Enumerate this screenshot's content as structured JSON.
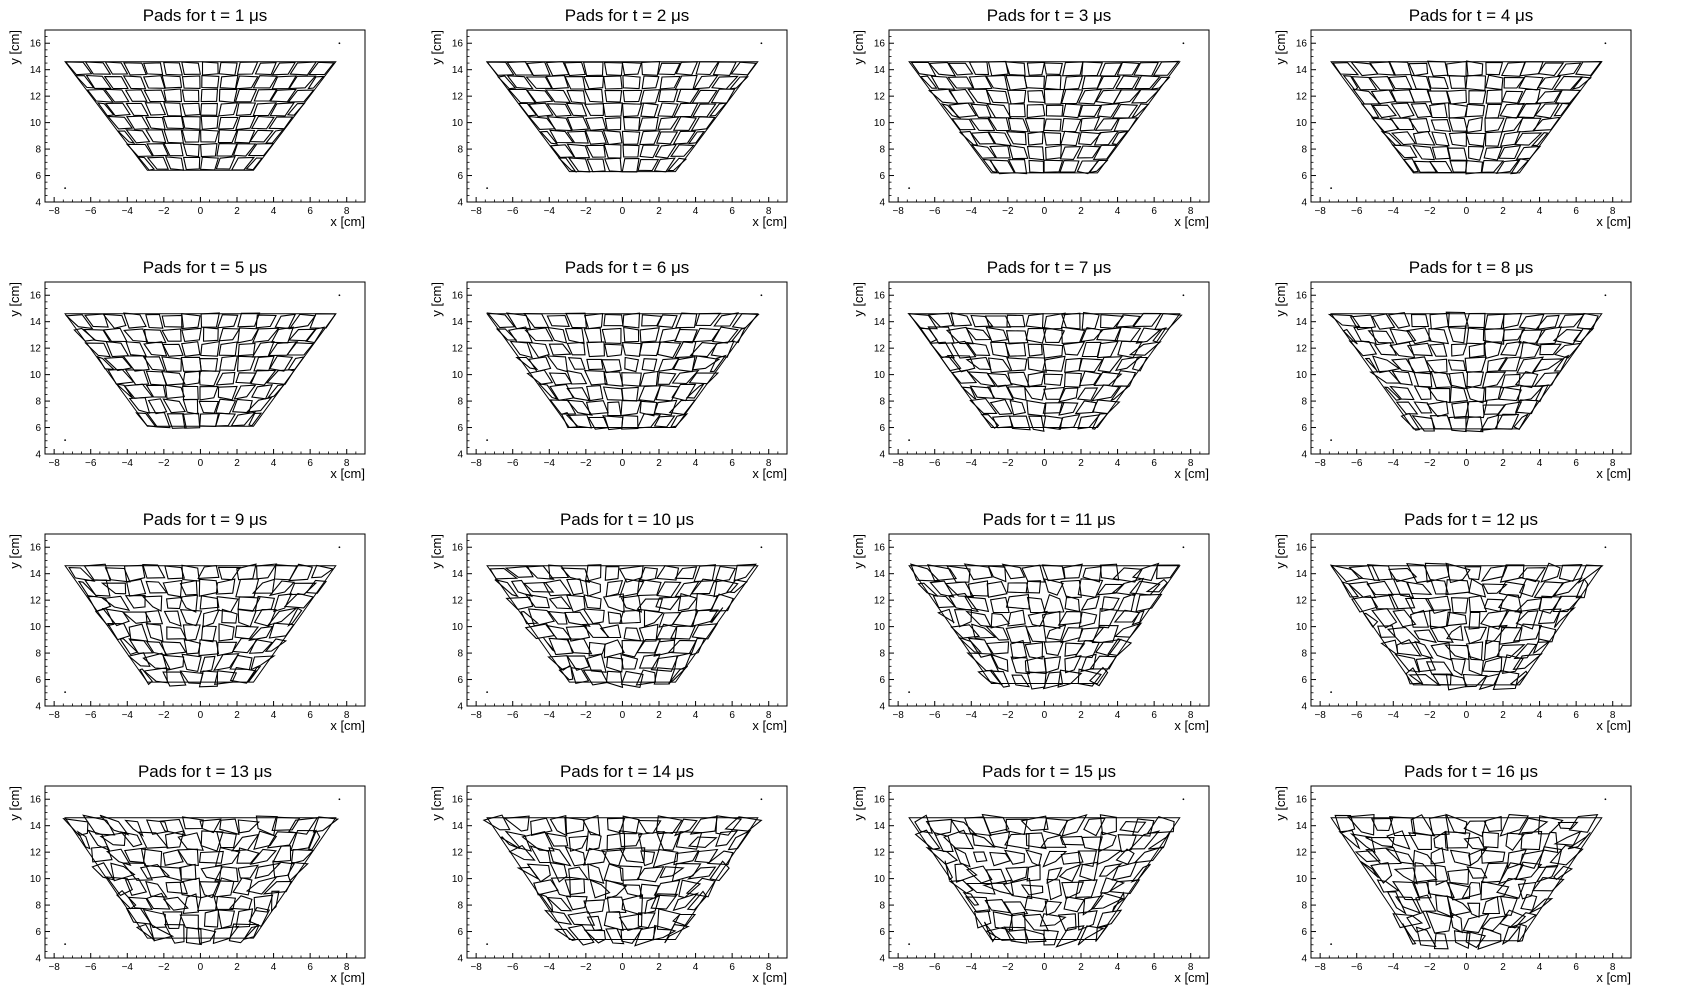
{
  "figure": {
    "background": "#ffffff",
    "line_color": "#000000"
  },
  "chart_data": [
    {
      "type": "scatter",
      "title": "Pads for t = 1 μs",
      "time_us": 1,
      "xlabel": "x [cm]",
      "ylabel": "y [cm]",
      "xlim": [
        -8.5,
        9
      ],
      "ylim": [
        4,
        17
      ],
      "xticks": [
        -8,
        -6,
        -4,
        -2,
        0,
        2,
        4,
        6,
        8
      ],
      "yticks": [
        4,
        6,
        8,
        10,
        12,
        14,
        16
      ],
      "trapezoid": {
        "top_y": 14.6,
        "bottom_y": 6.4,
        "top_x": [
          -7.4,
          7.4
        ],
        "bottom_x": [
          -2.9,
          2.9
        ]
      },
      "pad_rows": 8,
      "pads_per_row": 15,
      "grid": false,
      "legend": "none",
      "edge_points": [
        [
          -7.4,
          5.05
        ],
        [
          7.6,
          16.0
        ]
      ]
    },
    {
      "type": "scatter",
      "title": "Pads for t = 2 μs",
      "time_us": 2,
      "xlabel": "x [cm]",
      "ylabel": "y [cm]",
      "xlim": [
        -8.5,
        9
      ],
      "ylim": [
        4,
        17
      ],
      "xticks": [
        -8,
        -6,
        -4,
        -2,
        0,
        2,
        4,
        6,
        8
      ],
      "yticks": [
        4,
        6,
        8,
        10,
        12,
        14,
        16
      ],
      "trapezoid": {
        "top_y": 14.6,
        "bottom_y": 6.3,
        "top_x": [
          -7.4,
          7.4
        ],
        "bottom_x": [
          -2.9,
          2.9
        ]
      },
      "pad_rows": 8,
      "pads_per_row": 15,
      "grid": false,
      "legend": "none",
      "edge_points": [
        [
          -7.4,
          5.05
        ],
        [
          7.6,
          16.0
        ]
      ]
    },
    {
      "type": "scatter",
      "title": "Pads for t = 3 μs",
      "time_us": 3,
      "xlabel": "x [cm]",
      "ylabel": "y [cm]",
      "xlim": [
        -8.5,
        9
      ],
      "ylim": [
        4,
        17
      ],
      "xticks": [
        -8,
        -6,
        -4,
        -2,
        0,
        2,
        4,
        6,
        8
      ],
      "yticks": [
        4,
        6,
        8,
        10,
        12,
        14,
        16
      ],
      "trapezoid": {
        "top_y": 14.6,
        "bottom_y": 6.2,
        "top_x": [
          -7.4,
          7.4
        ],
        "bottom_x": [
          -2.9,
          2.9
        ]
      },
      "pad_rows": 8,
      "pads_per_row": 15,
      "grid": false,
      "legend": "none",
      "edge_points": [
        [
          -7.4,
          5.05
        ],
        [
          7.6,
          16.0
        ]
      ]
    },
    {
      "type": "scatter",
      "title": "Pads for t = 4 μs",
      "time_us": 4,
      "xlabel": "x [cm]",
      "ylabel": "y [cm]",
      "xlim": [
        -8.5,
        9
      ],
      "ylim": [
        4,
        17
      ],
      "xticks": [
        -8,
        -6,
        -4,
        -2,
        0,
        2,
        4,
        6,
        8
      ],
      "yticks": [
        4,
        6,
        8,
        10,
        12,
        14,
        16
      ],
      "trapezoid": {
        "top_y": 14.6,
        "bottom_y": 6.2,
        "top_x": [
          -7.4,
          7.4
        ],
        "bottom_x": [
          -2.9,
          2.9
        ]
      },
      "pad_rows": 8,
      "pads_per_row": 15,
      "grid": false,
      "legend": "none",
      "edge_points": [
        [
          -7.4,
          5.05
        ],
        [
          7.6,
          16.0
        ]
      ]
    },
    {
      "type": "scatter",
      "title": "Pads for t = 5 μs",
      "time_us": 5,
      "xlabel": "x [cm]",
      "ylabel": "y [cm]",
      "xlim": [
        -8.5,
        9
      ],
      "ylim": [
        4,
        17
      ],
      "xticks": [
        -8,
        -6,
        -4,
        -2,
        0,
        2,
        4,
        6,
        8
      ],
      "yticks": [
        4,
        6,
        8,
        10,
        12,
        14,
        16
      ],
      "trapezoid": {
        "top_y": 14.6,
        "bottom_y": 6.1,
        "top_x": [
          -7.4,
          7.4
        ],
        "bottom_x": [
          -2.9,
          2.9
        ]
      },
      "pad_rows": 8,
      "pads_per_row": 15,
      "grid": false,
      "legend": "none",
      "edge_points": [
        [
          -7.4,
          5.05
        ],
        [
          7.6,
          16.0
        ]
      ]
    },
    {
      "type": "scatter",
      "title": "Pads for t = 6 μs",
      "time_us": 6,
      "xlabel": "x [cm]",
      "ylabel": "y [cm]",
      "xlim": [
        -8.5,
        9
      ],
      "ylim": [
        4,
        17
      ],
      "xticks": [
        -8,
        -6,
        -4,
        -2,
        0,
        2,
        4,
        6,
        8
      ],
      "yticks": [
        4,
        6,
        8,
        10,
        12,
        14,
        16
      ],
      "trapezoid": {
        "top_y": 14.6,
        "bottom_y": 6.0,
        "top_x": [
          -7.4,
          7.4
        ],
        "bottom_x": [
          -2.9,
          2.9
        ]
      },
      "pad_rows": 8,
      "pads_per_row": 15,
      "grid": false,
      "legend": "none",
      "edge_points": [
        [
          -7.4,
          5.05
        ],
        [
          7.6,
          16.0
        ]
      ]
    },
    {
      "type": "scatter",
      "title": "Pads for t = 7 μs",
      "time_us": 7,
      "xlabel": "x [cm]",
      "ylabel": "y [cm]",
      "xlim": [
        -8.5,
        9
      ],
      "ylim": [
        4,
        17
      ],
      "xticks": [
        -8,
        -6,
        -4,
        -2,
        0,
        2,
        4,
        6,
        8
      ],
      "yticks": [
        4,
        6,
        8,
        10,
        12,
        14,
        16
      ],
      "trapezoid": {
        "top_y": 14.6,
        "bottom_y": 6.0,
        "top_x": [
          -7.4,
          7.4
        ],
        "bottom_x": [
          -2.9,
          2.9
        ]
      },
      "pad_rows": 8,
      "pads_per_row": 15,
      "grid": false,
      "legend": "none",
      "edge_points": [
        [
          -7.4,
          5.05
        ],
        [
          7.6,
          16.0
        ]
      ]
    },
    {
      "type": "scatter",
      "title": "Pads for t = 8 μs",
      "time_us": 8,
      "xlabel": "x [cm]",
      "ylabel": "y [cm]",
      "xlim": [
        -8.5,
        9
      ],
      "ylim": [
        4,
        17
      ],
      "xticks": [
        -8,
        -6,
        -4,
        -2,
        0,
        2,
        4,
        6,
        8
      ],
      "yticks": [
        4,
        6,
        8,
        10,
        12,
        14,
        16
      ],
      "trapezoid": {
        "top_y": 14.6,
        "bottom_y": 5.9,
        "top_x": [
          -7.4,
          7.4
        ],
        "bottom_x": [
          -2.9,
          2.9
        ]
      },
      "pad_rows": 8,
      "pads_per_row": 15,
      "grid": false,
      "legend": "none",
      "edge_points": [
        [
          -7.4,
          5.05
        ],
        [
          7.6,
          16.0
        ]
      ]
    },
    {
      "type": "scatter",
      "title": "Pads for t = 9 μs",
      "time_us": 9,
      "xlabel": "x [cm]",
      "ylabel": "y [cm]",
      "xlim": [
        -8.5,
        9
      ],
      "ylim": [
        4,
        17
      ],
      "xticks": [
        -8,
        -6,
        -4,
        -2,
        0,
        2,
        4,
        6,
        8
      ],
      "yticks": [
        4,
        6,
        8,
        10,
        12,
        14,
        16
      ],
      "trapezoid": {
        "top_y": 14.6,
        "bottom_y": 5.8,
        "top_x": [
          -7.4,
          7.4
        ],
        "bottom_x": [
          -2.9,
          2.9
        ]
      },
      "pad_rows": 8,
      "pads_per_row": 15,
      "grid": false,
      "legend": "none",
      "edge_points": [
        [
          -7.4,
          5.05
        ],
        [
          7.6,
          16.0
        ]
      ]
    },
    {
      "type": "scatter",
      "title": "Pads for t = 10 μs",
      "time_us": 10,
      "xlabel": "x [cm]",
      "ylabel": "y [cm]",
      "xlim": [
        -8.5,
        9
      ],
      "ylim": [
        4,
        17
      ],
      "xticks": [
        -8,
        -6,
        -4,
        -2,
        0,
        2,
        4,
        6,
        8
      ],
      "yticks": [
        4,
        6,
        8,
        10,
        12,
        14,
        16
      ],
      "trapezoid": {
        "top_y": 14.6,
        "bottom_y": 5.8,
        "top_x": [
          -7.4,
          7.4
        ],
        "bottom_x": [
          -2.9,
          2.9
        ]
      },
      "pad_rows": 8,
      "pads_per_row": 15,
      "grid": false,
      "legend": "none",
      "edge_points": [
        [
          -7.4,
          5.05
        ],
        [
          7.6,
          16.0
        ]
      ]
    },
    {
      "type": "scatter",
      "title": "Pads for t = 11 μs",
      "time_us": 11,
      "xlabel": "x [cm]",
      "ylabel": "y [cm]",
      "xlim": [
        -8.5,
        9
      ],
      "ylim": [
        4,
        17
      ],
      "xticks": [
        -8,
        -6,
        -4,
        -2,
        0,
        2,
        4,
        6,
        8
      ],
      "yticks": [
        4,
        6,
        8,
        10,
        12,
        14,
        16
      ],
      "trapezoid": {
        "top_y": 14.6,
        "bottom_y": 5.7,
        "top_x": [
          -7.4,
          7.4
        ],
        "bottom_x": [
          -2.9,
          2.9
        ]
      },
      "pad_rows": 8,
      "pads_per_row": 15,
      "grid": false,
      "legend": "none",
      "edge_points": [
        [
          -7.4,
          5.05
        ],
        [
          7.6,
          16.0
        ]
      ]
    },
    {
      "type": "scatter",
      "title": "Pads for t = 12 μs",
      "time_us": 12,
      "xlabel": "x [cm]",
      "ylabel": "y [cm]",
      "xlim": [
        -8.5,
        9
      ],
      "ylim": [
        4,
        17
      ],
      "xticks": [
        -8,
        -6,
        -4,
        -2,
        0,
        2,
        4,
        6,
        8
      ],
      "yticks": [
        4,
        6,
        8,
        10,
        12,
        14,
        16
      ],
      "trapezoid": {
        "top_y": 14.6,
        "bottom_y": 5.6,
        "top_x": [
          -7.4,
          7.4
        ],
        "bottom_x": [
          -2.9,
          2.9
        ]
      },
      "pad_rows": 8,
      "pads_per_row": 15,
      "grid": false,
      "legend": "none",
      "edge_points": [
        [
          -7.4,
          5.05
        ],
        [
          7.6,
          16.0
        ]
      ]
    },
    {
      "type": "scatter",
      "title": "Pads for t = 13 μs",
      "time_us": 13,
      "xlabel": "x [cm]",
      "ylabel": "y [cm]",
      "xlim": [
        -8.5,
        9
      ],
      "ylim": [
        4,
        17
      ],
      "xticks": [
        -8,
        -6,
        -4,
        -2,
        0,
        2,
        4,
        6,
        8
      ],
      "yticks": [
        4,
        6,
        8,
        10,
        12,
        14,
        16
      ],
      "trapezoid": {
        "top_y": 14.6,
        "bottom_y": 5.5,
        "top_x": [
          -7.4,
          7.4
        ],
        "bottom_x": [
          -2.9,
          2.9
        ]
      },
      "pad_rows": 8,
      "pads_per_row": 15,
      "grid": false,
      "legend": "none",
      "edge_points": [
        [
          -7.4,
          5.05
        ],
        [
          7.6,
          16.0
        ]
      ]
    },
    {
      "type": "scatter",
      "title": "Pads for t = 14 μs",
      "time_us": 14,
      "xlabel": "x [cm]",
      "ylabel": "y [cm]",
      "xlim": [
        -8.5,
        9
      ],
      "ylim": [
        4,
        17
      ],
      "xticks": [
        -8,
        -6,
        -4,
        -2,
        0,
        2,
        4,
        6,
        8
      ],
      "yticks": [
        4,
        6,
        8,
        10,
        12,
        14,
        16
      ],
      "trapezoid": {
        "top_y": 14.6,
        "bottom_y": 5.4,
        "top_x": [
          -7.4,
          7.4
        ],
        "bottom_x": [
          -2.9,
          2.9
        ]
      },
      "pad_rows": 8,
      "pads_per_row": 15,
      "grid": false,
      "legend": "none",
      "edge_points": [
        [
          -7.4,
          5.05
        ],
        [
          7.6,
          16.0
        ]
      ]
    },
    {
      "type": "scatter",
      "title": "Pads for t = 15 μs",
      "time_us": 15,
      "xlabel": "x [cm]",
      "ylabel": "y [cm]",
      "xlim": [
        -8.5,
        9
      ],
      "ylim": [
        4,
        17
      ],
      "xticks": [
        -8,
        -6,
        -4,
        -2,
        0,
        2,
        4,
        6,
        8
      ],
      "yticks": [
        4,
        6,
        8,
        10,
        12,
        14,
        16
      ],
      "trapezoid": {
        "top_y": 14.6,
        "bottom_y": 5.4,
        "top_x": [
          -7.4,
          7.4
        ],
        "bottom_x": [
          -2.9,
          2.9
        ]
      },
      "pad_rows": 8,
      "pads_per_row": 15,
      "grid": false,
      "legend": "none",
      "edge_points": [
        [
          -7.4,
          5.05
        ],
        [
          7.6,
          16.0
        ]
      ]
    },
    {
      "type": "scatter",
      "title": "Pads for t = 16 μs",
      "time_us": 16,
      "xlabel": "x [cm]",
      "ylabel": "y [cm]",
      "xlim": [
        -8.5,
        9
      ],
      "ylim": [
        4,
        17
      ],
      "xticks": [
        -8,
        -6,
        -4,
        -2,
        0,
        2,
        4,
        6,
        8
      ],
      "yticks": [
        4,
        6,
        8,
        10,
        12,
        14,
        16
      ],
      "trapezoid": {
        "top_y": 14.6,
        "bottom_y": 5.3,
        "top_x": [
          -7.4,
          7.4
        ],
        "bottom_x": [
          -2.9,
          2.9
        ]
      },
      "pad_rows": 8,
      "pads_per_row": 15,
      "grid": false,
      "legend": "none",
      "edge_points": [
        [
          -7.4,
          5.05
        ],
        [
          7.6,
          16.0
        ]
      ]
    }
  ]
}
